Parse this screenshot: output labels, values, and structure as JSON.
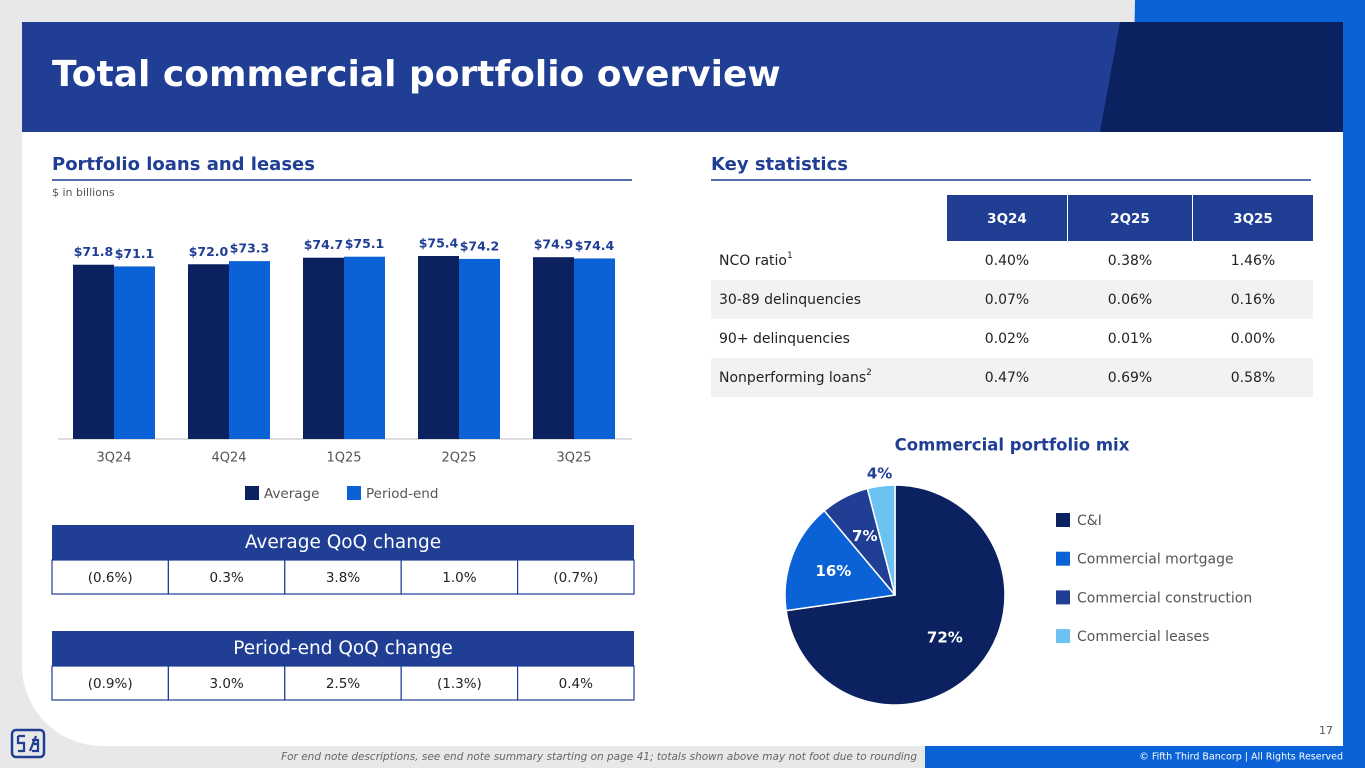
{
  "header": {
    "title": "Total commercial portfolio overview"
  },
  "chart_data": [
    {
      "type": "bar",
      "title": "Portfolio loans and leases",
      "subtitle": "$ in billions",
      "categories": [
        "3Q24",
        "4Q24",
        "1Q25",
        "2Q25",
        "3Q25"
      ],
      "series": [
        {
          "name": "Average",
          "color": "#0b2160",
          "values": [
            71.8,
            72.0,
            74.7,
            75.4,
            74.9
          ],
          "value_labels": [
            "$71.8",
            "$72.0",
            "$74.7",
            "$75.4",
            "$74.9"
          ]
        },
        {
          "name": "Period-end",
          "color": "#0a62d6",
          "values": [
            71.1,
            73.3,
            75.1,
            74.2,
            74.4
          ],
          "value_labels": [
            "$71.1",
            "$73.3",
            "$75.1",
            "$74.2",
            "$74.4"
          ]
        }
      ]
    },
    {
      "type": "pie",
      "title": "Commercial portfolio mix",
      "categories": [
        "C&I",
        "Commercial mortgage",
        "Commercial construction",
        "Commercial leases"
      ],
      "values": [
        72,
        16,
        7,
        4
      ],
      "value_labels": [
        "72%",
        "16%",
        "7%",
        "4%"
      ],
      "colors": [
        "#0b2160",
        "#0a62d6",
        "#1f3e94",
        "#6cc3f2"
      ]
    }
  ],
  "qoq_tables": [
    {
      "title": "Average QoQ change",
      "values": [
        "(0.6%)",
        "0.3%",
        "3.8%",
        "1.0%",
        "(0.7%)"
      ]
    },
    {
      "title": "Period-end QoQ change",
      "values": [
        "(0.9%)",
        "3.0%",
        "2.5%",
        "(1.3%)",
        "0.4%"
      ]
    }
  ],
  "key_statistics": {
    "title": "Key statistics",
    "columns": [
      "3Q24",
      "2Q25",
      "3Q25"
    ],
    "rows": [
      {
        "label": "NCO ratio",
        "note": "1",
        "values": [
          "0.40%",
          "0.38%",
          "1.46%"
        ]
      },
      {
        "label": "30-89 delinquencies",
        "values": [
          "0.07%",
          "0.06%",
          "0.16%"
        ]
      },
      {
        "label": "90+ delinquencies",
        "values": [
          "0.02%",
          "0.01%",
          "0.00%"
        ]
      },
      {
        "label": "Nonperforming loans",
        "note": "2",
        "values": [
          "0.47%",
          "0.69%",
          "0.58%"
        ]
      }
    ]
  },
  "footer": {
    "page_number": "17",
    "note": "For end note descriptions, see end note summary starting on page 41; totals shown above may not foot due to rounding",
    "copyright": "© Fifth Third Bancorp | All Rights Reserved"
  }
}
